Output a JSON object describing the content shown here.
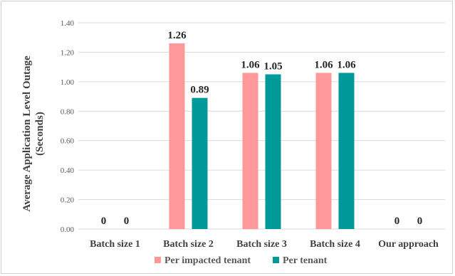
{
  "chart_data": {
    "type": "bar",
    "categories": [
      "Batch size 1",
      "Batch size 2",
      "Batch size 3",
      "Batch size 4",
      "Our approach"
    ],
    "series": [
      {
        "name": "Per impacted tenant",
        "color": "#ff9999",
        "values": [
          0,
          1.26,
          1.06,
          1.06,
          0
        ],
        "labels": [
          "0",
          "1.26",
          "1.06",
          "1.06",
          "0"
        ]
      },
      {
        "name": "Per tenant",
        "color": "#009999",
        "values": [
          0,
          0.89,
          1.05,
          1.06,
          0
        ],
        "labels": [
          "0",
          "0.89",
          "1.05",
          "1.06",
          "0"
        ]
      }
    ],
    "ylabel_line1": "Average Application  Level Outage",
    "ylabel_line2": "(Seconds)",
    "ylim": [
      0,
      1.4
    ],
    "yticks": [
      "0.00",
      "0.20",
      "0.40",
      "0.60",
      "0.80",
      "1.00",
      "1.20",
      "1.40"
    ],
    "grid": true,
    "legend_position": "bottom"
  }
}
